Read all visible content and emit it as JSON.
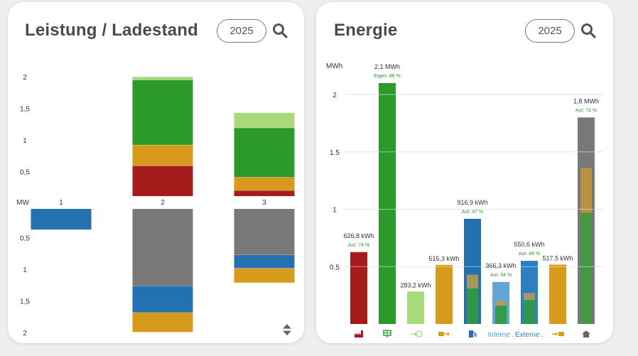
{
  "power_card": {
    "title": "Leistung / Ladestand",
    "year": "2025"
  },
  "energy_card": {
    "title": "Energie",
    "year": "2025"
  },
  "chart_data": [
    {
      "type": "bar",
      "stacked": true,
      "mirrored": true,
      "unit_label": "MW",
      "categories": [
        "1",
        "2",
        "3"
      ],
      "ylim": [
        -2,
        2
      ],
      "y_ticks_top": [
        "2",
        "1,5",
        "1",
        "0,5"
      ],
      "y_ticks_bottom": [
        "0,5",
        "1",
        "1,5",
        "2"
      ],
      "grid": false,
      "top_stacks": [
        [],
        [
          {
            "color": "#a6218f",
            "value": 0
          },
          {
            "color": "#a51c1c",
            "value": 0.48
          },
          {
            "color": "#d89a1c",
            "value": 0.33
          },
          {
            "color": "#2c9a2a",
            "value": 1.03
          },
          {
            "color": "#a8da7c",
            "value": 0.05
          }
        ],
        [
          {
            "color": "#a51c1c",
            "value": 0.09
          },
          {
            "color": "#d89a1c",
            "value": 0.21
          },
          {
            "color": "#2c9a2a",
            "value": 0.78
          },
          {
            "color": "#a8da7c",
            "value": 0.24
          }
        ]
      ],
      "bottom_stacks": [
        [
          {
            "color": "#2371b1",
            "value": 0.33
          }
        ],
        [
          {
            "color": "#787878",
            "value": 1.22
          },
          {
            "color": "#2371b1",
            "value": 0.42
          },
          {
            "color": "#d89a1c",
            "value": 0.31
          }
        ],
        [
          {
            "color": "#787878",
            "value": 0.73
          },
          {
            "color": "#2371b1",
            "value": 0.21
          },
          {
            "color": "#d89a1c",
            "value": 0.23
          }
        ]
      ]
    },
    {
      "type": "bar",
      "unit_label": "MWh",
      "ylim": [
        0,
        2.2
      ],
      "y_ticks": [
        {
          "label": "2",
          "value": 2
        },
        {
          "label": "1.5",
          "value": 1.5
        },
        {
          "label": "1",
          "value": 1
        },
        {
          "label": "0.5",
          "value": 0.5
        }
      ],
      "grid": true,
      "bars": [
        {
          "icon": "factory-icon",
          "value": 0.6268,
          "color": "#a51c1c",
          "label": "626,8 kWh",
          "sub": "Aut: 74 %"
        },
        {
          "icon": "solar-panel-icon",
          "value": 2.1,
          "color": "#2c9a2a",
          "label": "2,1 MWh",
          "sub": "Eigen: 86 %"
        },
        {
          "icon": "grid-export-icon",
          "value": 0.2832,
          "color": "#a8da7c",
          "label": "283,2 kWh",
          "sub": ""
        },
        {
          "icon": "battery-discharge-icon",
          "value": 0.5153,
          "color": "#d89a1c",
          "label": "515,3 kWh",
          "sub": ""
        },
        {
          "icon": "ev-charger-icon",
          "value": 0.9169,
          "color": "#2371b1",
          "label": "916,9 kWh",
          "sub": "Aut: 47 %",
          "overlays": [
            {
              "color": "#2f9a3e",
              "value": 0.31
            },
            {
              "color": "#b89a50",
              "value": 0.12
            }
          ]
        },
        {
          "icon": "internal-icon",
          "value": 0.3663,
          "color": "#64a5d8",
          "label": "366,3 kWh",
          "sub": "Aut: 54 %",
          "overlays": [
            {
              "color": "#2f9a3e",
              "value": 0.16
            },
            {
              "color": "#b89a50",
              "value": 0.04
            }
          ]
        },
        {
          "icon": "external-icon",
          "value": 0.5506,
          "color": "#2e7fc2",
          "label": "550,6 kWh",
          "sub": "Aut: 48 %",
          "overlays": [
            {
              "color": "#2f9a3e",
              "value": 0.21
            },
            {
              "color": "#b89a50",
              "value": 0.06
            }
          ]
        },
        {
          "icon": "battery-charge-icon",
          "value": 0.5175,
          "color": "#d89a1c",
          "label": "517,5 kWh",
          "sub": ""
        },
        {
          "icon": "home-icon",
          "value": 1.8,
          "color": "#787878",
          "label": "1,8 MWh",
          "sub": "Aut: 74 %",
          "overlays": [
            {
              "color": "#3f9a3c",
              "value": 0.97
            },
            {
              "color": "#c0953a",
              "value": 0.39
            }
          ]
        }
      ],
      "x_text_labels": {
        "internal-icon": "Interne .",
        "external-icon": "Externe ."
      }
    }
  ],
  "colors": {
    "sub_label": "#2c9a2a",
    "internal_label": "#4a9fd6",
    "external_label": "#2e7fc2"
  }
}
